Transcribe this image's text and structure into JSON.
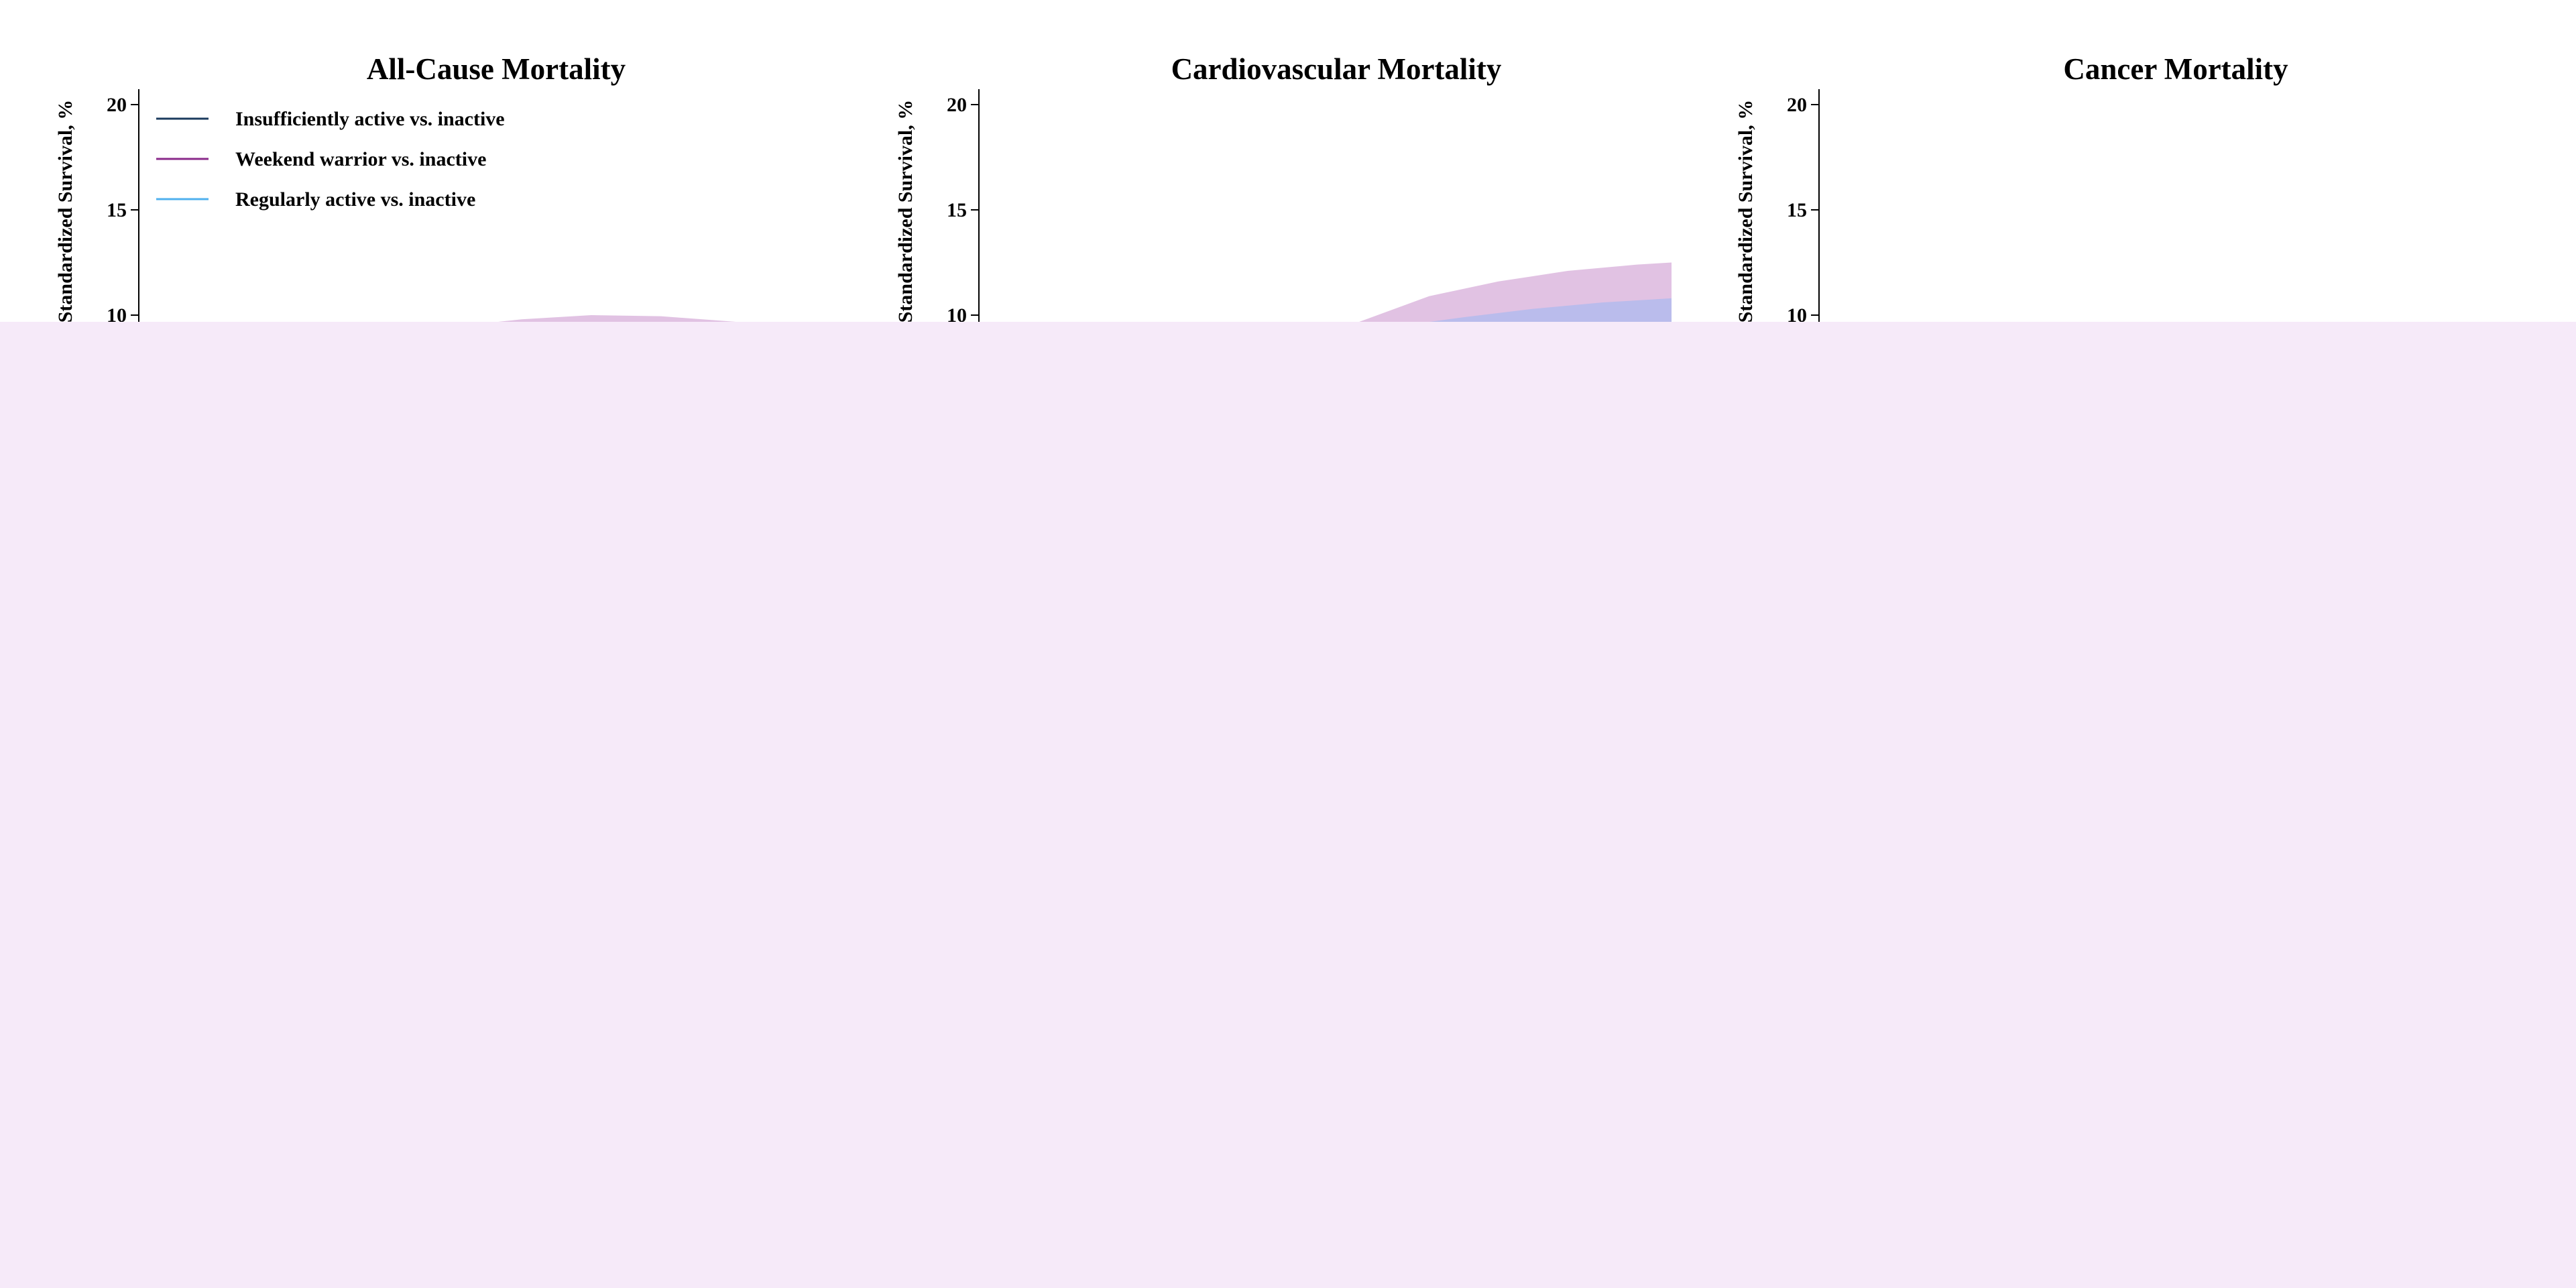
{
  "overlay_color": "#f6eaf9",
  "chart_data": [
    {
      "type": "area",
      "title": "All-Cause Mortality",
      "ylabel": "Standardized Survival, %",
      "yticks": [
        10,
        15,
        20
      ],
      "ylim": [
        0,
        20.5
      ],
      "legend": {
        "placement": "top-left",
        "entries": [
          {
            "label": "Insufficiently active vs. inactive",
            "color": "#1b3b5e"
          },
          {
            "label": "Weekend warrior vs. inactive",
            "color": "#8a2a8a"
          },
          {
            "label": "Regularly active vs. inactive",
            "color": "#4fb0ee"
          }
        ]
      },
      "series": [
        {
          "color": "#c98fcc",
          "opacity": 0.55,
          "x": [
            0.45,
            0.55,
            0.65,
            0.75,
            0.85,
            0.95
          ],
          "upper": [
            9.45,
            9.8,
            10.0,
            9.95,
            9.7,
            9.45
          ]
        }
      ]
    },
    {
      "type": "area",
      "title": "Cardiovascular Mortality",
      "ylabel": "Standardized Survival, %",
      "yticks": [
        10,
        15,
        20
      ],
      "ylim": [
        0,
        20.5
      ],
      "series": [
        {
          "color": "#c98fcc",
          "opacity": 0.55,
          "x": [
            0.53,
            0.65,
            0.75,
            0.85,
            0.95,
            1.0
          ],
          "upper": [
            9.45,
            10.9,
            11.6,
            12.1,
            12.4,
            12.5
          ]
        },
        {
          "color": "#a9b9ef",
          "opacity": 0.7,
          "x": [
            0.6,
            0.7,
            0.8,
            0.9,
            1.0
          ],
          "upper": [
            9.45,
            9.9,
            10.3,
            10.6,
            10.8
          ]
        }
      ]
    },
    {
      "type": "area",
      "title": "Cancer Mortality",
      "ylabel": "Standardized Survival, %",
      "yticks": [
        10,
        15,
        20
      ],
      "ylim": [
        0,
        20.5
      ],
      "series": []
    }
  ]
}
